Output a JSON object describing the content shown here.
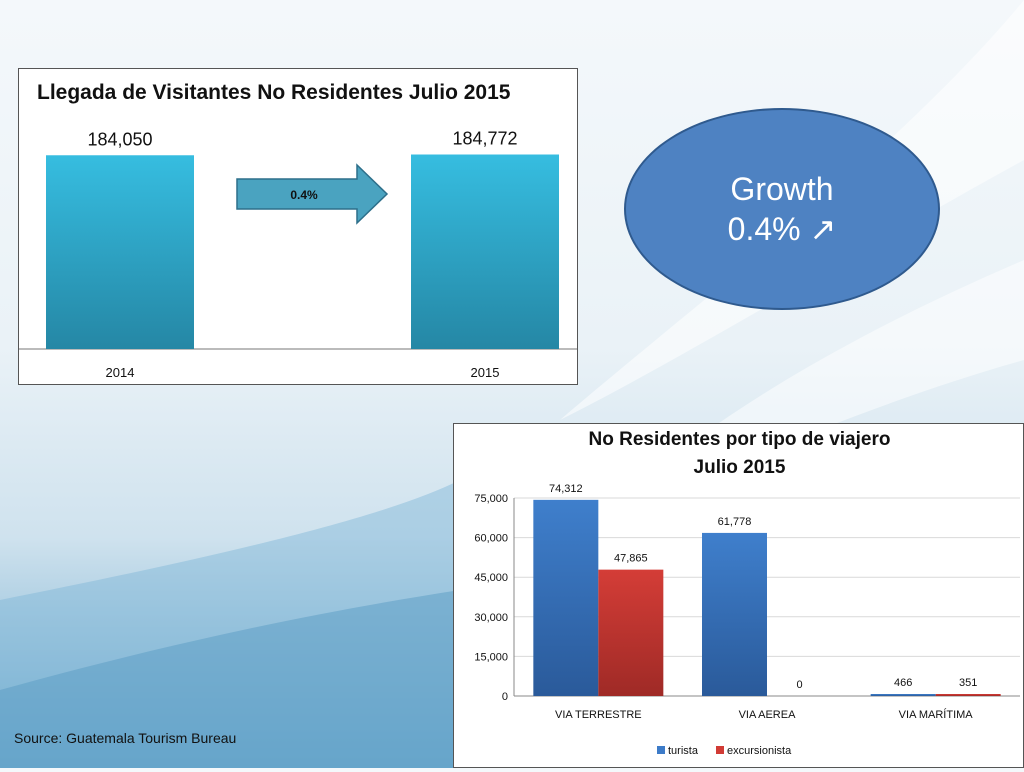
{
  "source_note": "Source: Guatemala Tourism Bureau",
  "growth_bubble": {
    "label": "Growth",
    "value": "0.4%",
    "icon": "arrow-up-right-icon"
  },
  "colors": {
    "bar1": "#34b6d8",
    "bar1_dark": "#2386a3",
    "turista": "#3d7bc8",
    "turista_dark": "#2a5a9a",
    "excursionista": "#d13b35",
    "excursionista_dark": "#a12a26",
    "arrow": "#4aa3c0"
  },
  "chart_data": [
    {
      "type": "bar",
      "title": "Llegada de Visitantes No Residentes Julio 2015",
      "categories": [
        "2014",
        "2015"
      ],
      "values": [
        184050,
        184772
      ],
      "value_labels": [
        "184,050",
        "184,772"
      ],
      "annotation": "0.4%",
      "ylim": [
        0,
        190000
      ],
      "grid": false
    },
    {
      "type": "bar",
      "title_lines": [
        "No Residentes por tipo de viajero",
        "Julio 2015"
      ],
      "categories": [
        "VIA TERRESTRE",
        "VIA AEREA",
        "VIA MARÍTIMA"
      ],
      "series": [
        {
          "name": "turista",
          "values": [
            74312,
            61778,
            466
          ],
          "labels": [
            "74,312",
            "61,778",
            "466"
          ]
        },
        {
          "name": "excursionista",
          "values": [
            47865,
            0,
            351
          ],
          "labels": [
            "47,865",
            "0",
            "351"
          ]
        }
      ],
      "yticks": [
        "0",
        "15,000",
        "30,000",
        "45,000",
        "60,000",
        "75,000"
      ],
      "ylim": [
        0,
        75000
      ],
      "grid": true,
      "legend_position": "bottom"
    }
  ]
}
